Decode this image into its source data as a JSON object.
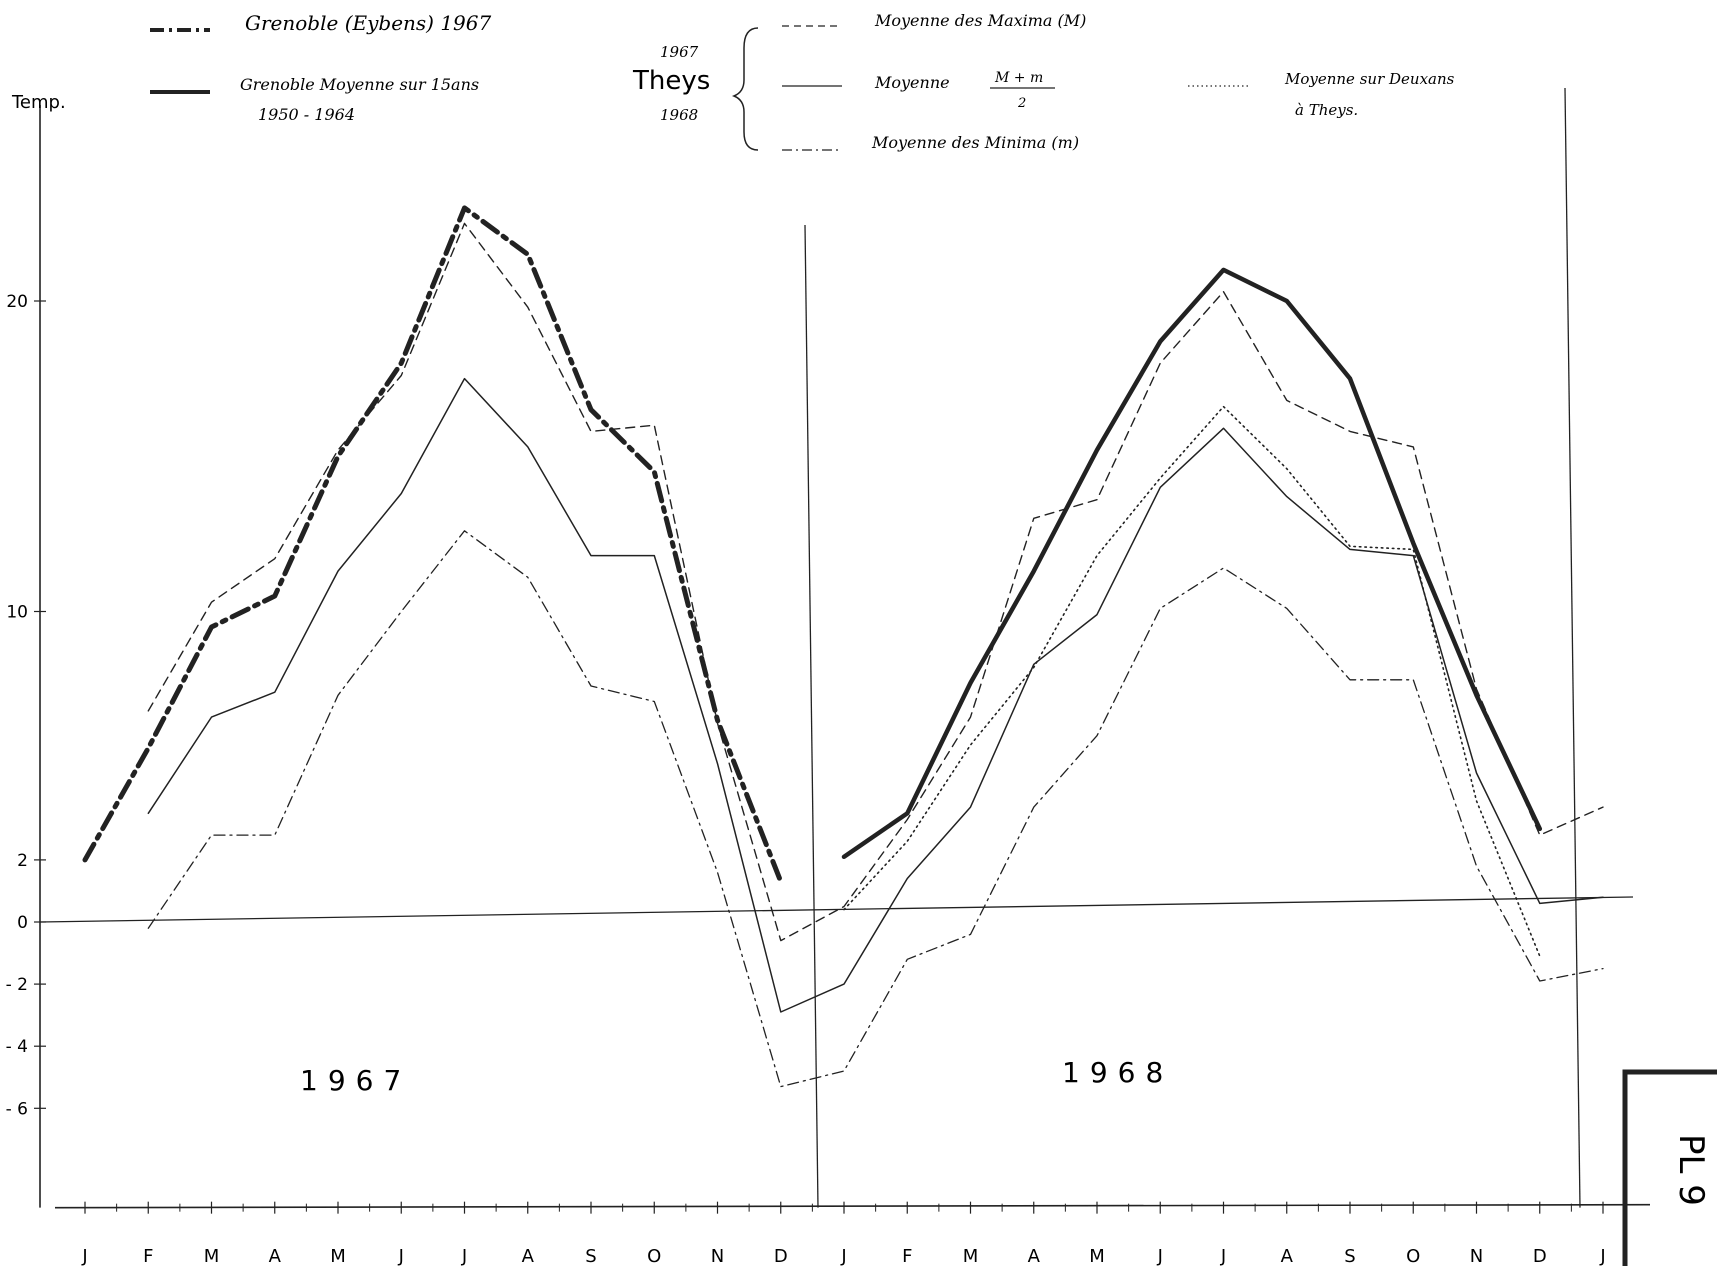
{
  "chart_data": {
    "type": "line",
    "ylabel": "Temp.",
    "y_tick_labels": [
      "20",
      "10",
      "2",
      "0",
      "- 2",
      "- 4",
      "- 6"
    ],
    "y_tick_values": [
      20,
      10,
      2,
      0,
      -2,
      -4,
      -6
    ],
    "ylim": [
      -9.2,
      27.5
    ],
    "x_tick_labels": [
      "J",
      "F",
      "M",
      "A",
      "M",
      "J",
      "J",
      "A",
      "S",
      "O",
      "N",
      "D",
      "J",
      "F",
      "M",
      "A",
      "M",
      "J",
      "J",
      "A",
      "S",
      "O",
      "N",
      "D",
      "J"
    ],
    "year_labels": [
      "1967",
      "1968"
    ],
    "plate_label": "PL 9",
    "legend": {
      "grenoble_1967": "Grenoble (Eybens) 1967",
      "grenoble_avg_line1": "Grenoble  Moyenne  sur 15ans",
      "grenoble_avg_line2": "1950 - 1964",
      "theys_year_top": "1967",
      "theys_name": "Theys",
      "theys_year_bottom": "1968",
      "max_label": "Moyenne des Maxima (M)",
      "mean_label": "Moyenne",
      "mean_numerator": "M + m",
      "mean_denominator": "2",
      "min_label": "Moyenne des Minima (m)",
      "two_year_line1": "Moyenne sur Deuxans",
      "two_year_line2": "à Theys."
    },
    "series": [
      {
        "name": "Grenoble (Eybens) 1967",
        "style": "thick-dashdot",
        "x": [
          0,
          1,
          2,
          3,
          4,
          5,
          6,
          7,
          8,
          9,
          10,
          11
        ],
        "y": [
          2.0,
          5.6,
          9.5,
          10.5,
          15.0,
          18.0,
          23.0,
          21.5,
          16.5,
          14.5,
          6.5,
          1.3
        ]
      },
      {
        "name": "Grenoble  Moyenne  sur 15ans",
        "style": "thick-solid",
        "x": [
          12,
          13,
          14,
          15,
          16,
          17,
          18,
          19,
          20,
          21,
          22,
          23
        ],
        "y": [
          2.1,
          3.5,
          7.7,
          11.3,
          15.2,
          18.7,
          21.0,
          20.0,
          17.5,
          12.2,
          7.3,
          3.0
        ]
      },
      {
        "name": "Moyenne des Maxima (M)",
        "style": "dashed",
        "x": [
          1,
          2,
          3,
          4,
          5,
          6,
          7,
          8,
          9,
          10,
          11,
          12,
          13,
          14,
          15,
          16,
          17,
          18,
          19,
          20,
          21,
          22,
          23,
          24
        ],
        "y": [
          6.8,
          10.3,
          11.7,
          15.2,
          17.6,
          22.5,
          19.8,
          15.8,
          16.0,
          6.4,
          -0.6,
          0.5,
          3.3,
          6.6,
          13.0,
          13.6,
          18.0,
          20.3,
          16.8,
          15.8,
          15.3,
          7.5,
          2.8,
          3.7
        ]
      },
      {
        "name": "Moyenne",
        "style": "solid",
        "x": [
          1,
          2,
          3,
          4,
          5,
          6,
          7,
          8,
          9,
          10,
          11,
          12,
          13,
          14,
          15,
          16,
          17,
          18,
          19,
          20,
          21,
          22,
          23,
          24
        ],
        "y": [
          3.5,
          6.6,
          7.4,
          11.3,
          13.8,
          17.5,
          15.3,
          11.8,
          11.8,
          5.1,
          -2.9,
          -2.0,
          1.4,
          3.7,
          8.3,
          9.9,
          14.0,
          15.9,
          13.7,
          12.0,
          11.8,
          4.8,
          0.6,
          0.8
        ]
      },
      {
        "name": "Moyenne des Minima (m)",
        "style": "dashdot",
        "x": [
          1,
          2,
          3,
          4,
          5,
          6,
          7,
          8,
          9,
          10,
          11,
          12,
          13,
          14,
          15,
          16,
          17,
          18,
          19,
          20,
          21,
          22,
          23,
          24
        ],
        "y": [
          -0.2,
          2.8,
          2.8,
          7.3,
          10.0,
          12.6,
          11.1,
          7.6,
          7.1,
          1.6,
          -5.3,
          -4.8,
          -1.2,
          -0.4,
          3.7,
          6.0,
          10.1,
          11.4,
          10.1,
          7.8,
          7.8,
          1.8,
          -1.9,
          -1.5
        ]
      },
      {
        "name": "Moyenne sur Deuxans",
        "style": "dotted",
        "x": [
          12,
          13,
          14,
          15,
          16,
          17,
          18,
          19,
          20,
          21,
          22,
          23
        ],
        "y": [
          0.4,
          2.6,
          5.7,
          8.2,
          11.8,
          14.3,
          16.6,
          14.6,
          12.1,
          12.0,
          3.9,
          -1.1
        ]
      }
    ]
  }
}
